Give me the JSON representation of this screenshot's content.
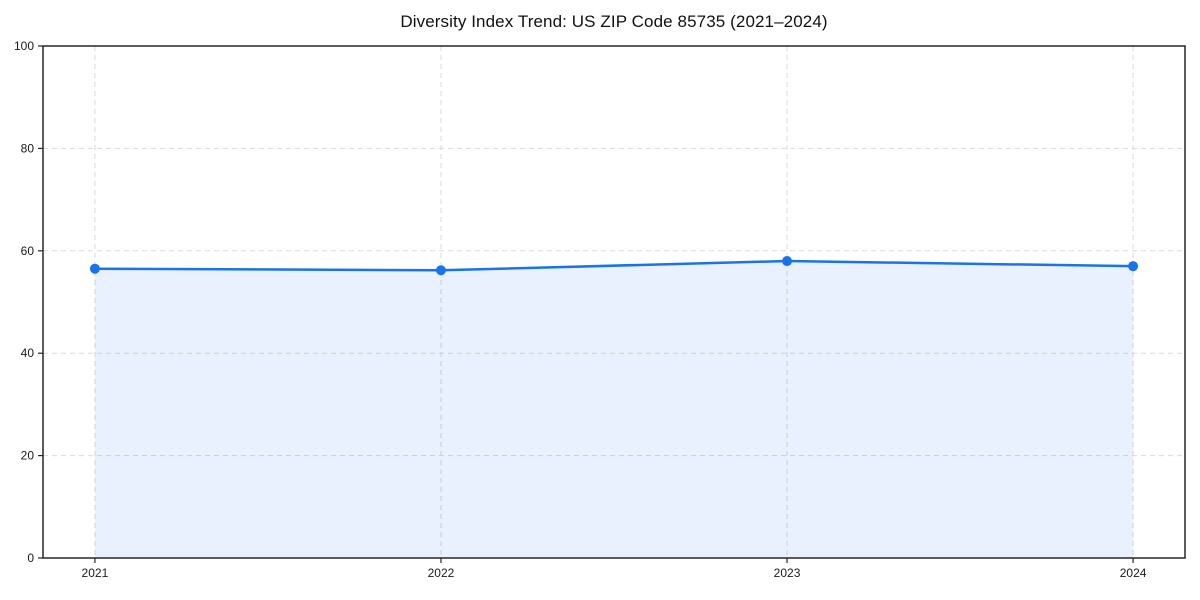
{
  "page": {
    "background_color": "#ffffff"
  },
  "chart_data": {
    "type": "area",
    "title": "Diversity Index Trend: US ZIP Code 85735 (2021–2024)",
    "categories": [
      "2021",
      "2022",
      "2023",
      "2024"
    ],
    "series": [
      {
        "name": "Diversity Index",
        "values": [
          56.5,
          56.2,
          58.0,
          57.0
        ]
      }
    ],
    "xlabel": "",
    "ylabel": "",
    "ylim": [
      0,
      100
    ],
    "yticks": [
      0,
      20,
      40,
      60,
      80,
      100
    ],
    "grid": "on",
    "grid_style": "dashed",
    "legend": "none",
    "colors": {
      "line": "#1a73e8",
      "marker": "#1a73e8",
      "fill": "rgba(26,115,232,0.10)",
      "grid": "#d9d9d9",
      "spine": "#262626",
      "tick_label": "#1a1a1a",
      "title": "#111111"
    }
  }
}
